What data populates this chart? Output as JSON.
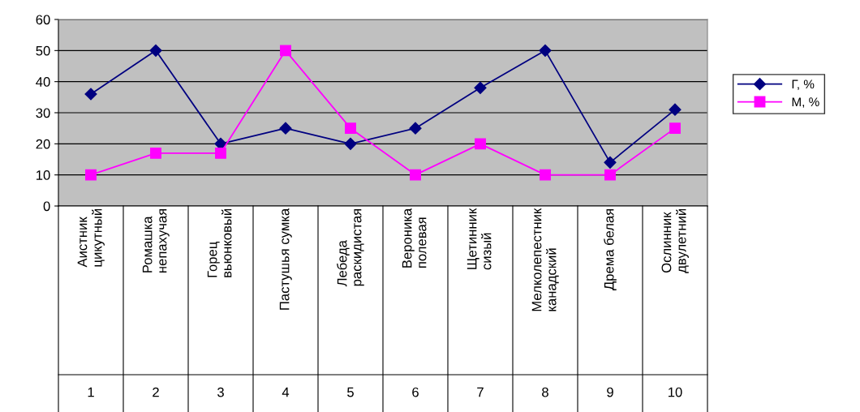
{
  "chart_data": {
    "type": "line",
    "categories": [
      "Аистник\nцикутный",
      "Ромашка\nнепахучая",
      "Горец\nвьюнковый",
      "Пастушья сумка",
      "Лебеда\nраскидистая",
      "Вероника\nполевая",
      "Щетинник\nсизый",
      "Мелколепестник\nканадский",
      "Дрема белая",
      "Ослинник\nдвулетний"
    ],
    "series": [
      {
        "name": "Г, %",
        "color": "#000080",
        "marker": "diamond",
        "values": [
          36,
          50,
          20,
          25,
          20,
          25,
          38,
          50,
          14,
          31
        ]
      },
      {
        "name": "М, %",
        "color": "#ff00ff",
        "marker": "square",
        "values": [
          10,
          17,
          17,
          50,
          25,
          10,
          20,
          10,
          10,
          25
        ]
      }
    ],
    "annotations": [
      "1",
      "2",
      "3",
      "4",
      "5",
      "6",
      "7",
      "8",
      "9",
      "10"
    ],
    "ylim": [
      0,
      60
    ],
    "yticks": [
      0,
      10,
      20,
      30,
      40,
      50,
      60
    ],
    "grid": "y",
    "legend": "right",
    "line_style": "solid"
  }
}
